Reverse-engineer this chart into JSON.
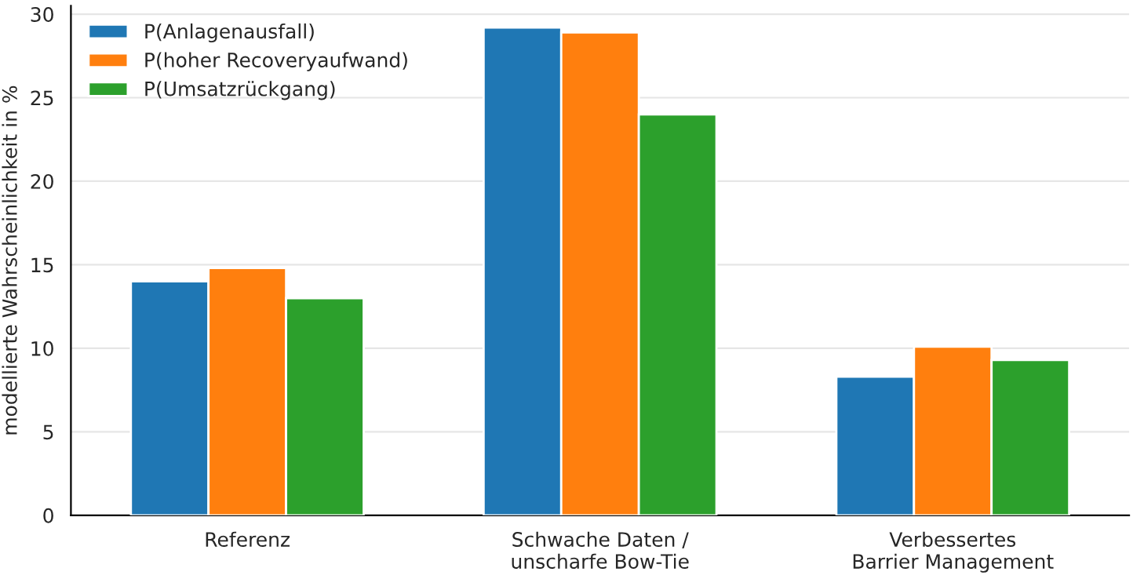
{
  "chart_data": {
    "type": "bar",
    "ylabel": "modellierte Wahrscheinlichkeit in %",
    "categories": [
      "Referenz",
      "Schwache Daten /\nunscharfe Bow-Tie",
      "Verbessertes\nBarrier Management"
    ],
    "series": [
      {
        "name": "P(Anlagenausfall)",
        "color": "#1f77b4",
        "values": [
          14.0,
          29.2,
          8.3
        ]
      },
      {
        "name": "P(hoher Recoveryaufwand)",
        "color": "#ff7f0e",
        "values": [
          14.8,
          28.9,
          10.1
        ]
      },
      {
        "name": "P(Umsatzrückgang)",
        "color": "#2ca02c",
        "values": [
          13.0,
          24.0,
          9.3
        ]
      }
    ],
    "ylim": [
      0,
      30.5
    ],
    "yticks": [
      0,
      5,
      10,
      15,
      20,
      25,
      30
    ],
    "grid": "y",
    "legend": "top left"
  }
}
